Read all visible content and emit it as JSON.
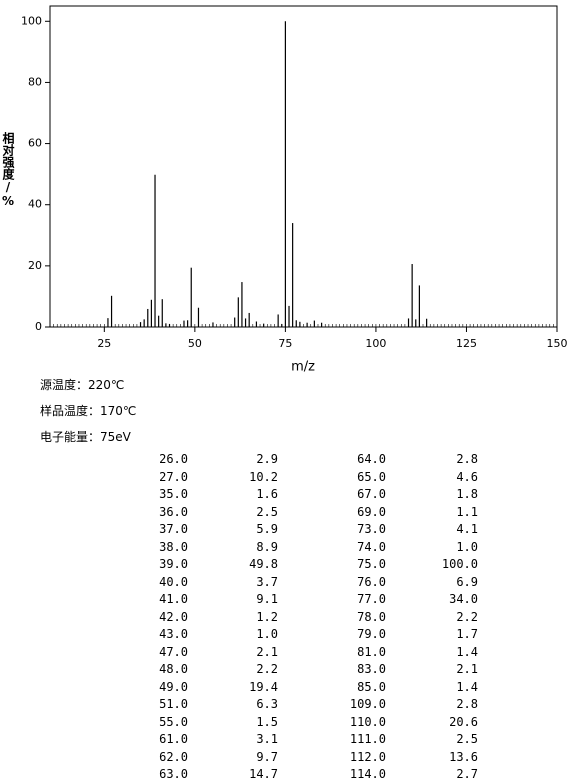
{
  "chart_data": {
    "type": "stem",
    "x_label": "m/z",
    "y_label": "相对强度/%",
    "x": [
      26,
      27,
      35,
      36,
      37,
      38,
      39,
      40,
      41,
      42,
      43,
      47,
      48,
      49,
      51,
      55,
      61,
      62,
      63,
      64,
      65,
      67,
      69,
      73,
      74,
      75,
      76,
      77,
      78,
      79,
      81,
      83,
      85,
      109,
      110,
      111,
      112,
      114
    ],
    "values": [
      2.9,
      10.2,
      1.6,
      2.5,
      5.9,
      8.9,
      49.8,
      3.7,
      9.1,
      1.2,
      1.0,
      2.1,
      2.2,
      19.4,
      6.3,
      1.5,
      3.1,
      9.7,
      14.7,
      2.8,
      4.6,
      1.8,
      1.1,
      4.1,
      1.0,
      100.0,
      6.9,
      34.0,
      2.2,
      1.7,
      1.4,
      2.1,
      1.4,
      2.8,
      20.6,
      2.5,
      13.6,
      2.7
    ],
    "color": "#000000",
    "xlim": [
      10,
      150
    ],
    "xticks": [
      25,
      50,
      75,
      100,
      125,
      150
    ],
    "ylim": [
      0,
      105
    ],
    "yticks": [
      0,
      20,
      40,
      60,
      80,
      100
    ]
  },
  "info": [
    "源温度：220℃",
    "样品温度：170℃",
    "电子能量：75eV"
  ],
  "table": {
    "rows": [
      [
        "26.0",
        "2.9",
        "64.0",
        "2.8"
      ],
      [
        "27.0",
        "10.2",
        "65.0",
        "4.6"
      ],
      [
        "35.0",
        "1.6",
        "67.0",
        "1.8"
      ],
      [
        "36.0",
        "2.5",
        "69.0",
        "1.1"
      ],
      [
        "37.0",
        "5.9",
        "73.0",
        "4.1"
      ],
      [
        "38.0",
        "8.9",
        "74.0",
        "1.0"
      ],
      [
        "39.0",
        "49.8",
        "75.0",
        "100.0"
      ],
      [
        "40.0",
        "3.7",
        "76.0",
        "6.9"
      ],
      [
        "41.0",
        "9.1",
        "77.0",
        "34.0"
      ],
      [
        "42.0",
        "1.2",
        "78.0",
        "2.2"
      ],
      [
        "43.0",
        "1.0",
        "79.0",
        "1.7"
      ],
      [
        "47.0",
        "2.1",
        "81.0",
        "1.4"
      ],
      [
        "48.0",
        "2.2",
        "83.0",
        "2.1"
      ],
      [
        "49.0",
        "19.4",
        "85.0",
        "1.4"
      ],
      [
        "51.0",
        "6.3",
        "109.0",
        "2.8"
      ],
      [
        "55.0",
        "1.5",
        "110.0",
        "20.6"
      ],
      [
        "61.0",
        "3.1",
        "111.0",
        "2.5"
      ],
      [
        "62.0",
        "9.7",
        "112.0",
        "13.6"
      ],
      [
        "63.0",
        "14.7",
        "114.0",
        "2.7"
      ]
    ]
  }
}
